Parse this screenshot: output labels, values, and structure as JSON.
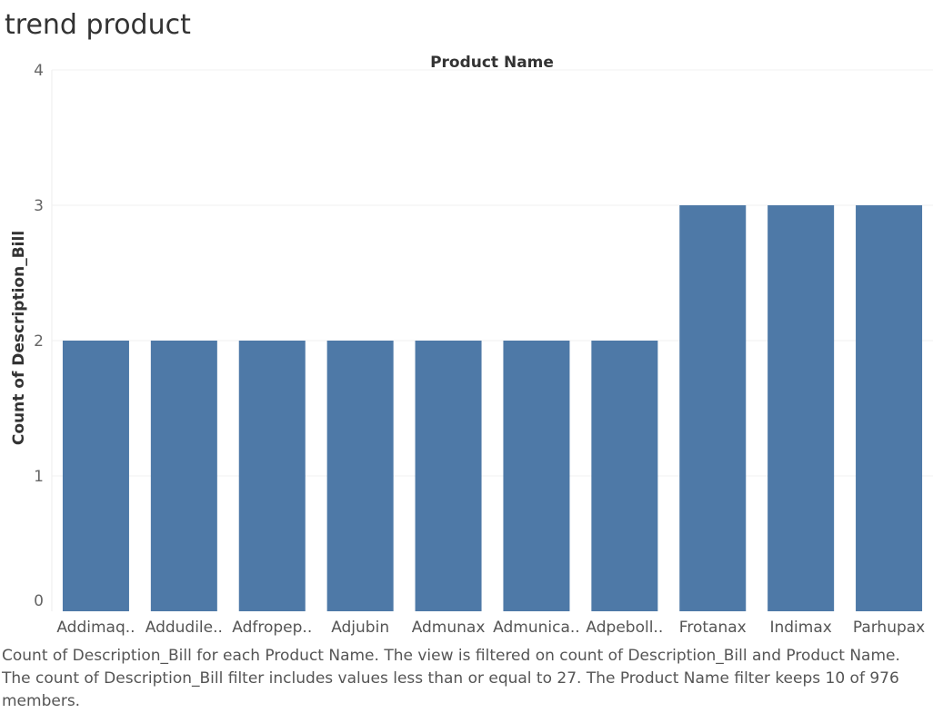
{
  "title": "trend product",
  "chart_data": {
    "type": "bar",
    "xlabel": "Product Name",
    "ylabel": "Count of Description_Bill",
    "categories": [
      "Addimaq..",
      "Addudile..",
      "Adfropep..",
      "Adjubin",
      "Admunax",
      "Admunica..",
      "Adpeboll..",
      "Frotanax",
      "Indimax",
      "Parhupax"
    ],
    "values": [
      2,
      2,
      2,
      2,
      2,
      2,
      2,
      3,
      3,
      3
    ],
    "ylim": [
      0,
      4
    ],
    "yticks": [
      "0",
      "1",
      "2",
      "3",
      "4"
    ],
    "grid": true,
    "bar_color": "#4e79a7"
  },
  "caption": "Count of Description_Bill for each Product Name. The view is filtered on count of Description_Bill and Product Name. The count of Description_Bill filter includes values less than or equal to 27. The Product Name filter keeps 10 of 976 members."
}
